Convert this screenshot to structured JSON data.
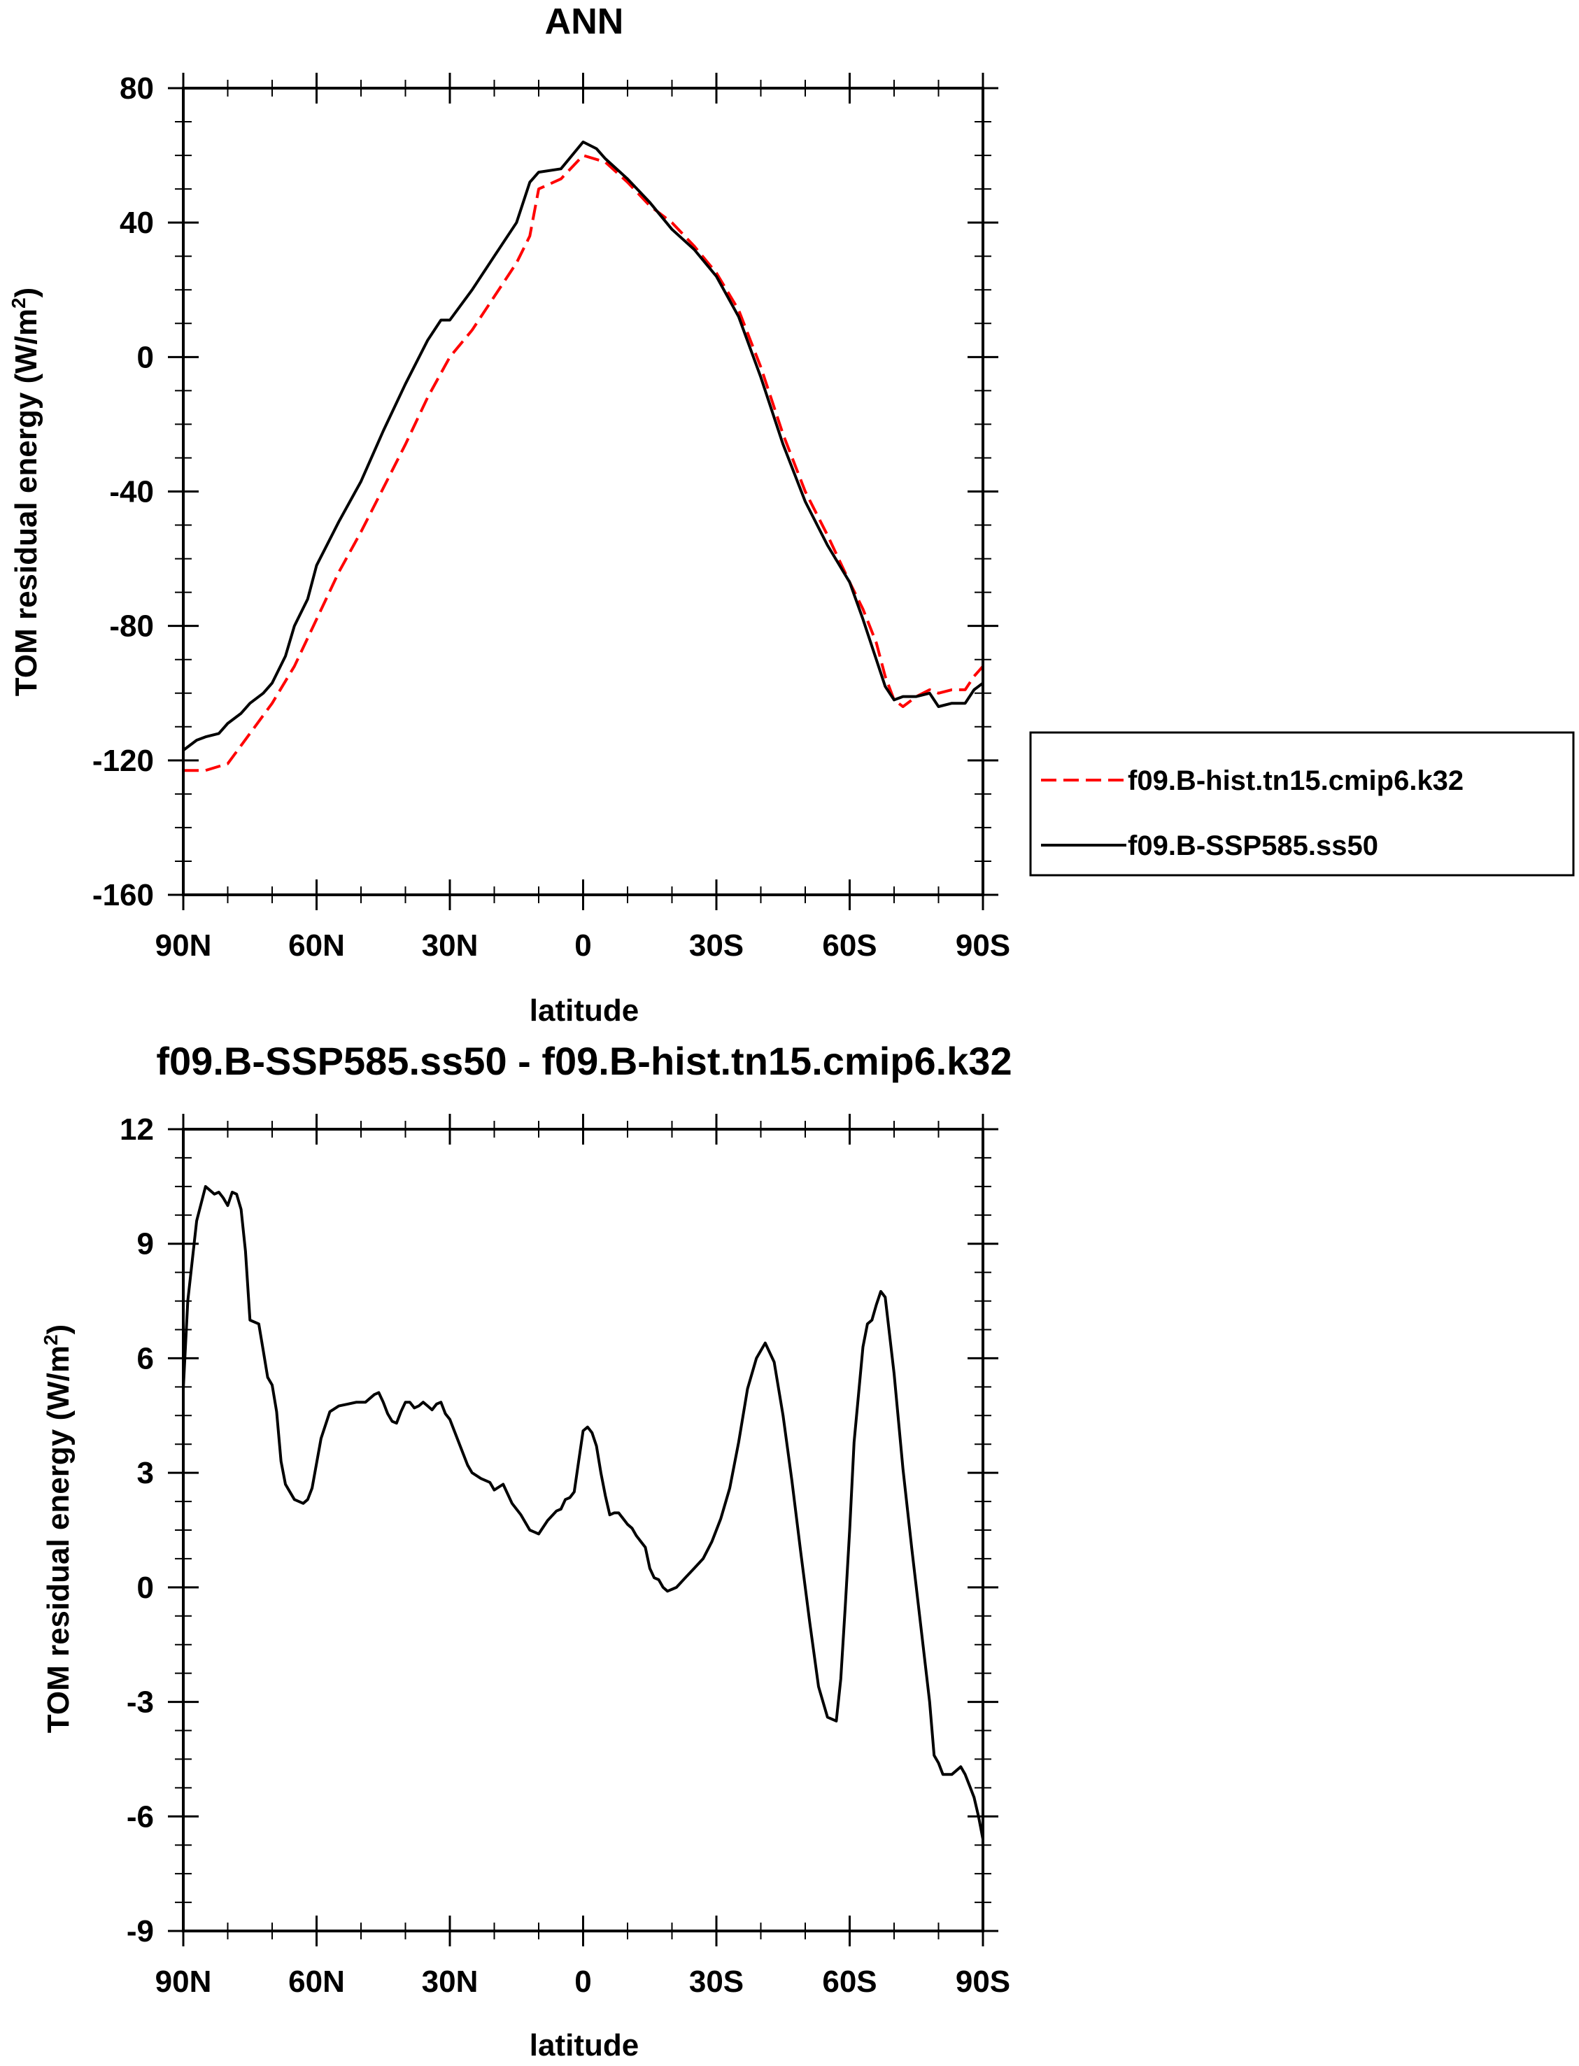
{
  "chart_data": [
    {
      "type": "line",
      "title": "ANN",
      "xlabel": "latitude",
      "ylabel_main": "TOM residual energy (W/m",
      "ylabel_sup": "2",
      "ylabel_close": ")",
      "xlim": [
        -90,
        90
      ],
      "ylim": [
        -160,
        80
      ],
      "xticks": [
        -90,
        -60,
        -30,
        0,
        30,
        60,
        90
      ],
      "xtick_labels": [
        "90N",
        "60N",
        "30N",
        "0",
        "30S",
        "60S",
        "90S"
      ],
      "yticks": [
        -160,
        -120,
        -80,
        -40,
        0,
        40,
        80
      ],
      "ytick_labels": [
        "-160",
        "-120",
        "-80",
        "-40",
        "0",
        "40",
        "80"
      ],
      "grid": false,
      "legend": {
        "placement": "right-outside"
      },
      "series": [
        {
          "name": "f09.B-hist.tn15.cmip6.k32",
          "color": "#ff0000",
          "style": "dashed",
          "x": [
            -90,
            -85,
            -80,
            -75,
            -70,
            -65,
            -60,
            -55,
            -50,
            -45,
            -40,
            -35,
            -30,
            -25,
            -20,
            -15,
            -12,
            -10,
            -5,
            0,
            5,
            10,
            15,
            20,
            25,
            30,
            35,
            40,
            45,
            50,
            55,
            60,
            63,
            66,
            68,
            70,
            72,
            75,
            78,
            80,
            83,
            86,
            88,
            90
          ],
          "y": [
            -123,
            -123,
            -121,
            -112,
            -103,
            -92,
            -78,
            -64,
            -52,
            -39,
            -26,
            -12,
            0,
            8,
            18,
            28,
            36,
            50,
            53,
            60,
            58,
            52,
            45,
            40,
            33,
            25,
            14,
            -3,
            -23,
            -40,
            -53,
            -67,
            -75,
            -85,
            -95,
            -102,
            -104,
            -101,
            -99,
            -100,
            -99,
            -99,
            -95,
            -92
          ]
        },
        {
          "name": "f09.B-SSP585.ss50",
          "color": "#000000",
          "style": "solid",
          "x": [
            -90,
            -87,
            -85,
            -82,
            -80,
            -77,
            -75,
            -72,
            -70,
            -67,
            -65,
            -62,
            -60,
            -55,
            -50,
            -45,
            -40,
            -35,
            -32,
            -30,
            -25,
            -20,
            -15,
            -12,
            -10,
            -5,
            0,
            3,
            5,
            10,
            15,
            20,
            25,
            30,
            35,
            40,
            45,
            50,
            55,
            60,
            63,
            66,
            68,
            70,
            72,
            75,
            78,
            80,
            83,
            86,
            88,
            90
          ],
          "y": [
            -117,
            -114,
            -113,
            -112,
            -109,
            -106,
            -103,
            -100,
            -97,
            -89,
            -80,
            -72,
            -62,
            -49,
            -37,
            -22,
            -8,
            5,
            11,
            11,
            20,
            30,
            40,
            52,
            55,
            56,
            64,
            62,
            59,
            53,
            46,
            38,
            32,
            24,
            12,
            -6,
            -26,
            -43,
            -56,
            -67,
            -78,
            -90,
            -98,
            -102,
            -101,
            -101,
            -100,
            -104,
            -103,
            -103,
            -99,
            -97
          ]
        }
      ]
    },
    {
      "type": "line",
      "title": "f09.B-SSP585.ss50 - f09.B-hist.tn15.cmip6.k32",
      "xlabel": "latitude",
      "ylabel_main": "TOM residual energy (W/m",
      "ylabel_sup": "2",
      "ylabel_close": ")",
      "xlim": [
        -90,
        90
      ],
      "ylim": [
        -9,
        12
      ],
      "xticks": [
        -90,
        -60,
        -30,
        0,
        30,
        60,
        90
      ],
      "xtick_labels": [
        "90N",
        "60N",
        "30N",
        "0",
        "30S",
        "60S",
        "90S"
      ],
      "yticks": [
        -9,
        -6,
        -3,
        0,
        3,
        6,
        9,
        12
      ],
      "ytick_labels": [
        "-9",
        "-6",
        "-3",
        "0",
        "3",
        "6",
        "9",
        "12"
      ],
      "grid": false,
      "series": [
        {
          "color": "#000000",
          "style": "solid",
          "x": [
            -90,
            -89,
            -87,
            -85,
            -84,
            -83,
            -82,
            -81,
            -80,
            -79,
            -78,
            -77,
            -76,
            -75,
            -73,
            -72,
            -71,
            -70,
            -69,
            -68,
            -67,
            -65,
            -63,
            -62,
            -61,
            -59,
            -57,
            -55,
            -53,
            -51,
            -49,
            -47,
            -46,
            -45,
            -44,
            -43,
            -42,
            -41,
            -40,
            -39,
            -38,
            -37,
            -36,
            -35,
            -34,
            -33,
            -32,
            -31,
            -30,
            -28,
            -26,
            -25,
            -23,
            -21,
            -20,
            -18,
            -16,
            -14,
            -12,
            -11,
            -10,
            -8,
            -6,
            -5,
            -4,
            -3,
            -2,
            -1,
            0,
            1,
            2,
            3,
            4,
            5,
            6,
            7,
            8,
            9,
            10,
            11,
            12,
            13,
            14,
            15,
            16,
            17,
            18,
            19,
            20,
            21,
            23,
            25,
            27,
            29,
            31,
            33,
            35,
            37,
            39,
            41,
            43,
            45,
            47,
            49,
            51,
            53,
            55,
            57,
            58,
            59,
            60,
            61,
            63,
            64,
            65,
            66,
            67,
            68,
            70,
            72,
            74,
            76,
            78,
            79,
            80,
            81,
            83,
            84,
            85,
            86,
            87,
            88,
            89,
            90
          ],
          "y": [
            5.2,
            7.5,
            9.6,
            10.5,
            10.4,
            10.3,
            10.35,
            10.2,
            10.0,
            10.35,
            10.3,
            9.9,
            8.8,
            7.0,
            6.9,
            6.2,
            5.5,
            5.3,
            4.6,
            3.3,
            2.7,
            2.3,
            2.2,
            2.3,
            2.6,
            3.9,
            4.6,
            4.75,
            4.8,
            4.85,
            4.85,
            5.05,
            5.1,
            4.85,
            4.55,
            4.35,
            4.3,
            4.6,
            4.85,
            4.85,
            4.7,
            4.75,
            4.85,
            4.75,
            4.65,
            4.8,
            4.85,
            4.55,
            4.4,
            3.8,
            3.2,
            3.0,
            2.85,
            2.75,
            2.55,
            2.7,
            2.2,
            1.9,
            1.5,
            1.45,
            1.4,
            1.75,
            2.0,
            2.05,
            2.3,
            2.35,
            2.5,
            3.3,
            4.1,
            4.2,
            4.05,
            3.7,
            3.0,
            2.4,
            1.9,
            1.95,
            1.95,
            1.8,
            1.65,
            1.55,
            1.35,
            1.2,
            1.05,
            0.5,
            0.25,
            0.2,
            0.0,
            -0.1,
            -0.05,
            0.0,
            0.25,
            0.5,
            0.75,
            1.2,
            1.8,
            2.6,
            3.8,
            5.2,
            6.0,
            6.4,
            5.9,
            4.5,
            2.8,
            0.9,
            -0.9,
            -2.6,
            -3.4,
            -3.5,
            -2.4,
            -0.5,
            1.5,
            3.8,
            6.3,
            6.9,
            7.0,
            7.4,
            7.75,
            7.6,
            5.6,
            3.1,
            1.0,
            -1.0,
            -3.0,
            -4.4,
            -4.6,
            -4.9,
            -4.9,
            -4.8,
            -4.7,
            -4.9,
            -5.2,
            -5.5,
            -6.0,
            -6.6
          ]
        }
      ]
    }
  ]
}
